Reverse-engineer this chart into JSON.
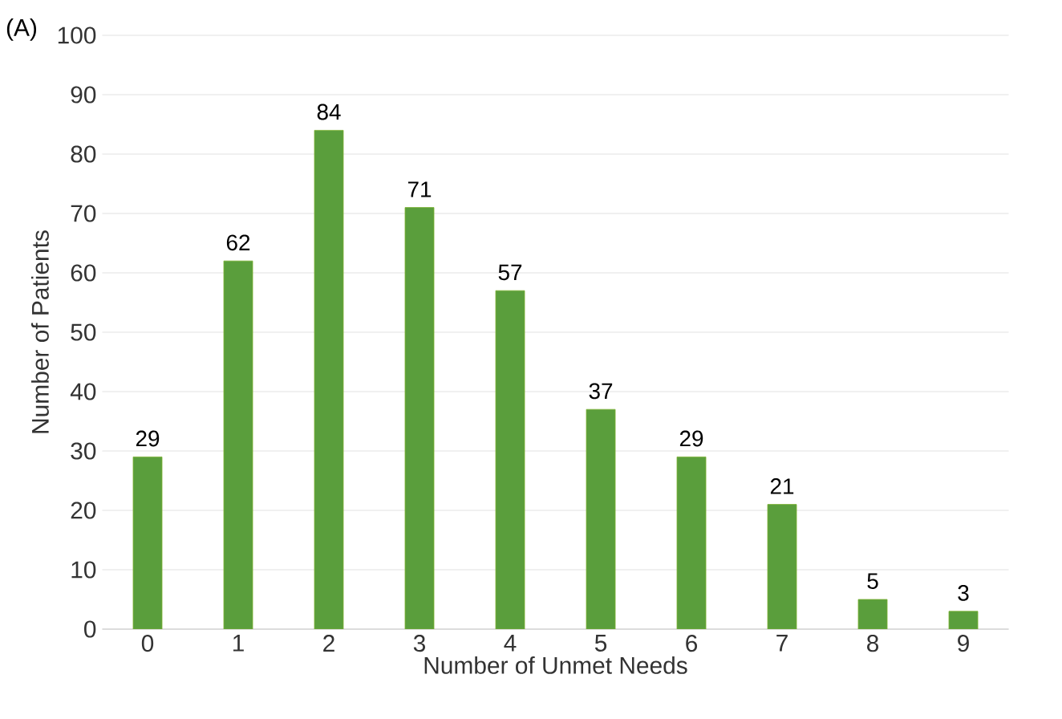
{
  "chart_data": {
    "type": "bar",
    "xlabel": "Number of Unmet Needs",
    "ylabel": "Number of Patients",
    "annotations": [
      "(A)"
    ],
    "categories": [
      "0",
      "1",
      "2",
      "3",
      "4",
      "5",
      "6",
      "7",
      "8",
      "9"
    ],
    "values": [
      29,
      62,
      84,
      71,
      57,
      37,
      29,
      21,
      5,
      3
    ],
    "color": "#5a9e3c",
    "ylim": [
      0,
      100
    ],
    "yticks": [
      0,
      10,
      20,
      30,
      40,
      50,
      60,
      70,
      80,
      90,
      100
    ],
    "grid": "y",
    "data_labels": true
  }
}
